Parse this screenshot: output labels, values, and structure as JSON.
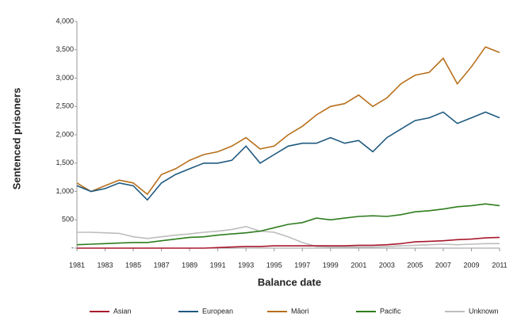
{
  "chart_data": {
    "type": "line",
    "x_label": "Balance date",
    "y_label": "Sentenced prisoners",
    "x": [
      1981,
      1982,
      1983,
      1984,
      1985,
      1986,
      1987,
      1988,
      1989,
      1990,
      1991,
      1992,
      1993,
      1994,
      1995,
      1996,
      1997,
      1998,
      1999,
      2000,
      2001,
      2002,
      2003,
      2004,
      2005,
      2006,
      2007,
      2008,
      2009,
      2010,
      2011
    ],
    "series": [
      {
        "name": "Asian",
        "color": "#a8192e",
        "values": [
          0,
          0,
          0,
          0,
          0,
          0,
          0,
          0,
          0,
          0,
          10,
          20,
          30,
          30,
          40,
          40,
          40,
          40,
          40,
          40,
          50,
          50,
          60,
          80,
          110,
          120,
          130,
          150,
          160,
          180,
          190
        ]
      },
      {
        "name": "European",
        "color": "#1f5a80",
        "values": [
          1100,
          1000,
          1050,
          1150,
          1100,
          850,
          1150,
          1300,
          1400,
          1500,
          1500,
          1550,
          1800,
          1500,
          1650,
          1800,
          1850,
          1850,
          1950,
          1850,
          1900,
          1700,
          1950,
          2100,
          2250,
          2300,
          2400,
          2200,
          2300,
          2400,
          2300
        ]
      },
      {
        "name": "Māori",
        "color": "#b8701c",
        "values": [
          1150,
          1000,
          1100,
          1200,
          1150,
          950,
          1300,
          1400,
          1550,
          1650,
          1700,
          1800,
          1950,
          1750,
          1800,
          2000,
          2150,
          2350,
          2500,
          2550,
          2700,
          2500,
          2650,
          2900,
          3050,
          3100,
          3350,
          2900,
          3200,
          3550,
          3450
        ]
      },
      {
        "name": "Pacific",
        "color": "#2e7d1e",
        "values": [
          60,
          70,
          80,
          90,
          100,
          100,
          130,
          160,
          190,
          200,
          230,
          250,
          270,
          300,
          360,
          420,
          450,
          530,
          500,
          530,
          560,
          570,
          560,
          590,
          640,
          660,
          690,
          730,
          750,
          780,
          750
        ]
      },
      {
        "name": "Unknown",
        "color": "#bdbdbd",
        "values": [
          280,
          280,
          270,
          260,
          200,
          170,
          200,
          230,
          250,
          280,
          300,
          330,
          380,
          300,
          280,
          200,
          100,
          30,
          20,
          20,
          20,
          20,
          30,
          40,
          50,
          60,
          70,
          60,
          70,
          80,
          80
        ]
      }
    ],
    "xlim": [
      1981,
      2011
    ],
    "xticks": [
      1981,
      1983,
      1985,
      1987,
      1989,
      1991,
      1993,
      1995,
      1997,
      1999,
      2001,
      2003,
      2005,
      2007,
      2009,
      2011
    ],
    "ylim": [
      0,
      4000
    ],
    "yticks": [
      {
        "value": 0,
        "label": "-"
      },
      500,
      {
        "value": 1000,
        "label": "1,000"
      },
      {
        "value": 1500,
        "label": "1,500"
      },
      {
        "value": 2000,
        "label": "2,000"
      },
      {
        "value": 2500,
        "label": "2,500"
      },
      {
        "value": 3000,
        "label": "3,000"
      },
      {
        "value": 3500,
        "label": "3,500"
      },
      {
        "value": 4000,
        "label": "4,000"
      }
    ],
    "grid": false,
    "legend": "bottom"
  }
}
